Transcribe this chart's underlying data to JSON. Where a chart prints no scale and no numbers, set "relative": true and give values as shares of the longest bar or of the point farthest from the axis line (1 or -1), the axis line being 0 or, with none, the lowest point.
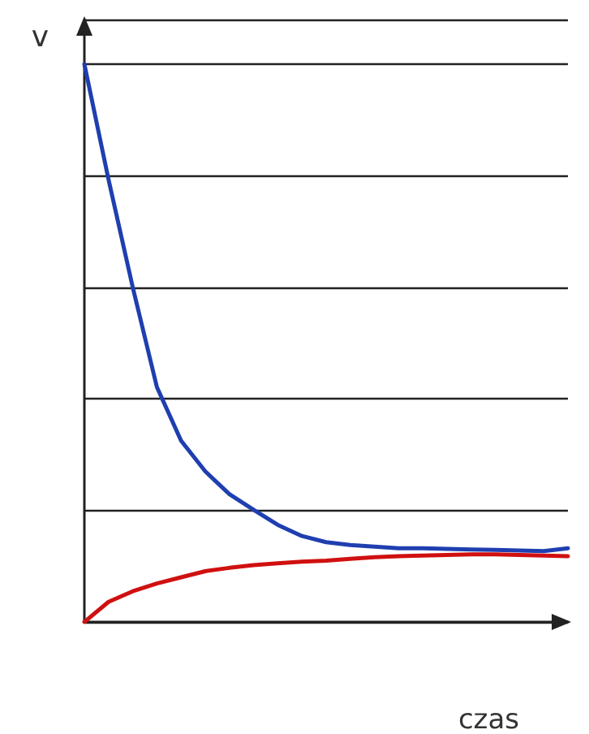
{
  "chart_data": {
    "type": "line",
    "relative": true,
    "xlabel": "czas",
    "ylabel": "v",
    "grid": "y",
    "marker": "none",
    "line_style": "solid",
    "categories": [
      null,
      null,
      null,
      null,
      null,
      null,
      null,
      null,
      null,
      null,
      null,
      null,
      null,
      null,
      null,
      null,
      null,
      null,
      null,
      null,
      null
    ],
    "series": [
      {
        "color": "#1f3fb0",
        "values": [
          1.0,
          0.793,
          0.6,
          0.421,
          0.325,
          0.27,
          0.229,
          0.201,
          0.174,
          0.154,
          0.143,
          0.138,
          0.135,
          0.132,
          0.132,
          0.131,
          0.13,
          0.129,
          0.128,
          0.127,
          0.132
        ]
      },
      {
        "color": "#d01010",
        "values": [
          0,
          0.036,
          0.055,
          0.069,
          0.08,
          0.091,
          0.097,
          0.102,
          0.105,
          0.108,
          0.11,
          0.113,
          0.116,
          0.118,
          0.119,
          0.12,
          0.121,
          0.121,
          0.12,
          0.119,
          0.118
        ]
      }
    ]
  }
}
